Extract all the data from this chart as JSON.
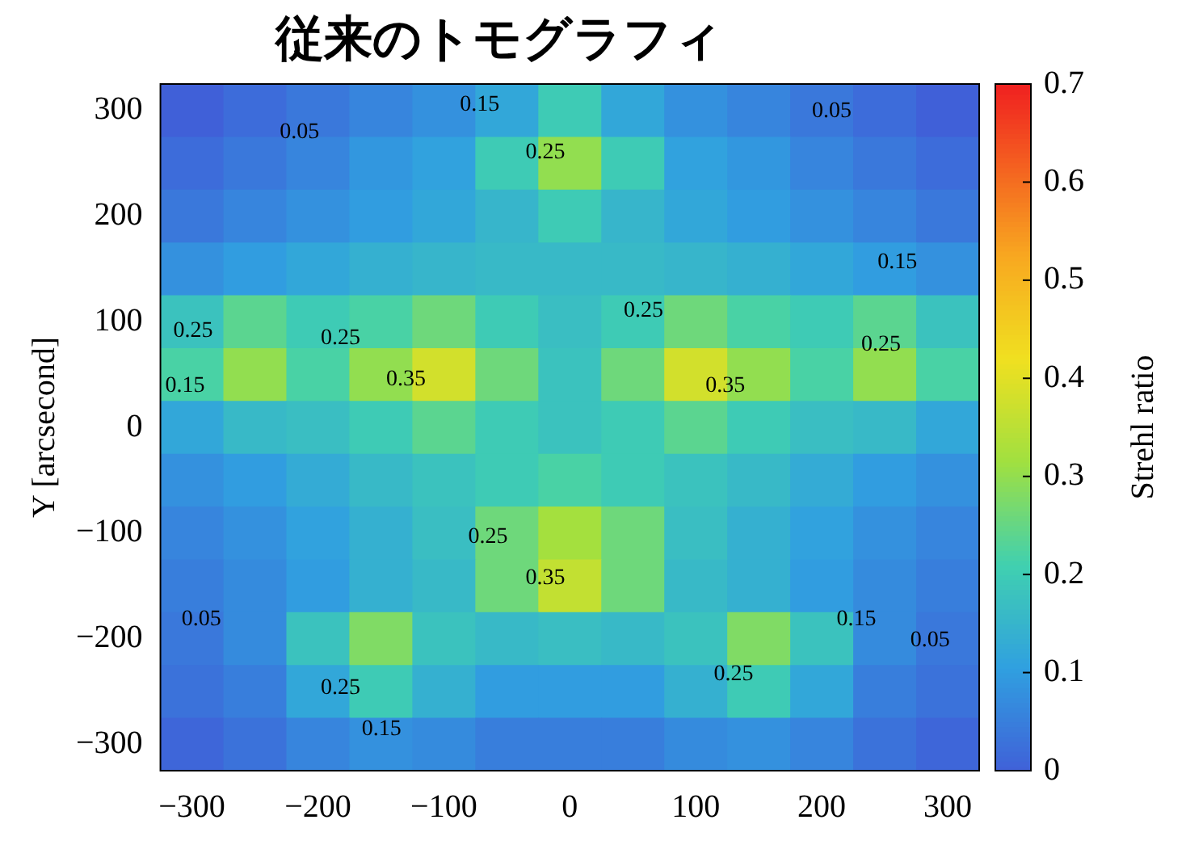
{
  "chart_data": {
    "type": "heatmap",
    "title": "従来のトモグラフィ",
    "ylabel": "Y [arcsecond]",
    "clabel": "Strehl ratio",
    "categories": [
      "−300",
      null,
      "−200",
      null,
      "−100",
      null,
      "0",
      null,
      "100",
      null,
      "200",
      null,
      "300"
    ],
    "y_categories": [
      "300",
      null,
      "200",
      null,
      "100",
      null,
      "0",
      null,
      "−100",
      null,
      "−200",
      null,
      "−300"
    ],
    "clim": [
      0,
      0.7
    ],
    "cticks": [
      0,
      0.1,
      0.2,
      0.3,
      0.4,
      0.5,
      0.6,
      0.7
    ],
    "cells": [
      [
        0.0,
        0.02,
        0.04,
        0.06,
        0.08,
        0.12,
        0.2,
        0.12,
        0.08,
        0.06,
        0.04,
        0.02,
        0.0
      ],
      [
        0.02,
        0.04,
        0.06,
        0.09,
        0.11,
        0.2,
        0.3,
        0.2,
        0.11,
        0.09,
        0.06,
        0.04,
        0.02
      ],
      [
        0.04,
        0.06,
        0.08,
        0.1,
        0.12,
        0.15,
        0.2,
        0.15,
        0.12,
        0.1,
        0.08,
        0.06,
        0.04
      ],
      [
        0.08,
        0.1,
        0.12,
        0.14,
        0.15,
        0.16,
        0.16,
        0.16,
        0.15,
        0.14,
        0.12,
        0.1,
        0.08
      ],
      [
        0.18,
        0.24,
        0.2,
        0.22,
        0.26,
        0.2,
        0.17,
        0.2,
        0.26,
        0.22,
        0.2,
        0.24,
        0.18
      ],
      [
        0.22,
        0.3,
        0.22,
        0.3,
        0.38,
        0.26,
        0.18,
        0.26,
        0.38,
        0.3,
        0.22,
        0.3,
        0.22
      ],
      [
        0.12,
        0.16,
        0.17,
        0.2,
        0.24,
        0.2,
        0.18,
        0.2,
        0.24,
        0.2,
        0.17,
        0.16,
        0.12
      ],
      [
        0.08,
        0.1,
        0.13,
        0.16,
        0.18,
        0.2,
        0.22,
        0.2,
        0.18,
        0.16,
        0.13,
        0.1,
        0.08
      ],
      [
        0.06,
        0.08,
        0.11,
        0.14,
        0.17,
        0.26,
        0.32,
        0.26,
        0.17,
        0.14,
        0.11,
        0.08,
        0.06
      ],
      [
        0.05,
        0.07,
        0.1,
        0.14,
        0.16,
        0.26,
        0.36,
        0.26,
        0.16,
        0.14,
        0.1,
        0.07,
        0.05
      ],
      [
        0.04,
        0.07,
        0.18,
        0.28,
        0.18,
        0.16,
        0.17,
        0.16,
        0.18,
        0.28,
        0.18,
        0.07,
        0.04
      ],
      [
        0.03,
        0.05,
        0.12,
        0.2,
        0.14,
        0.1,
        0.1,
        0.1,
        0.14,
        0.2,
        0.12,
        0.05,
        0.03
      ],
      [
        0.01,
        0.03,
        0.06,
        0.08,
        0.07,
        0.05,
        0.05,
        0.05,
        0.07,
        0.08,
        0.06,
        0.03,
        0.01
      ]
    ],
    "annotations": [
      "0.05",
      "0.15",
      "0.25",
      "0.05",
      "0.15",
      "0.25",
      "0.15",
      "0.25",
      "0.35",
      "0.25",
      "0.35",
      "0.25",
      "0.25",
      "0.35",
      "0.05",
      "0.25",
      "0.15",
      "0.25",
      "0.15",
      "0.05"
    ]
  }
}
